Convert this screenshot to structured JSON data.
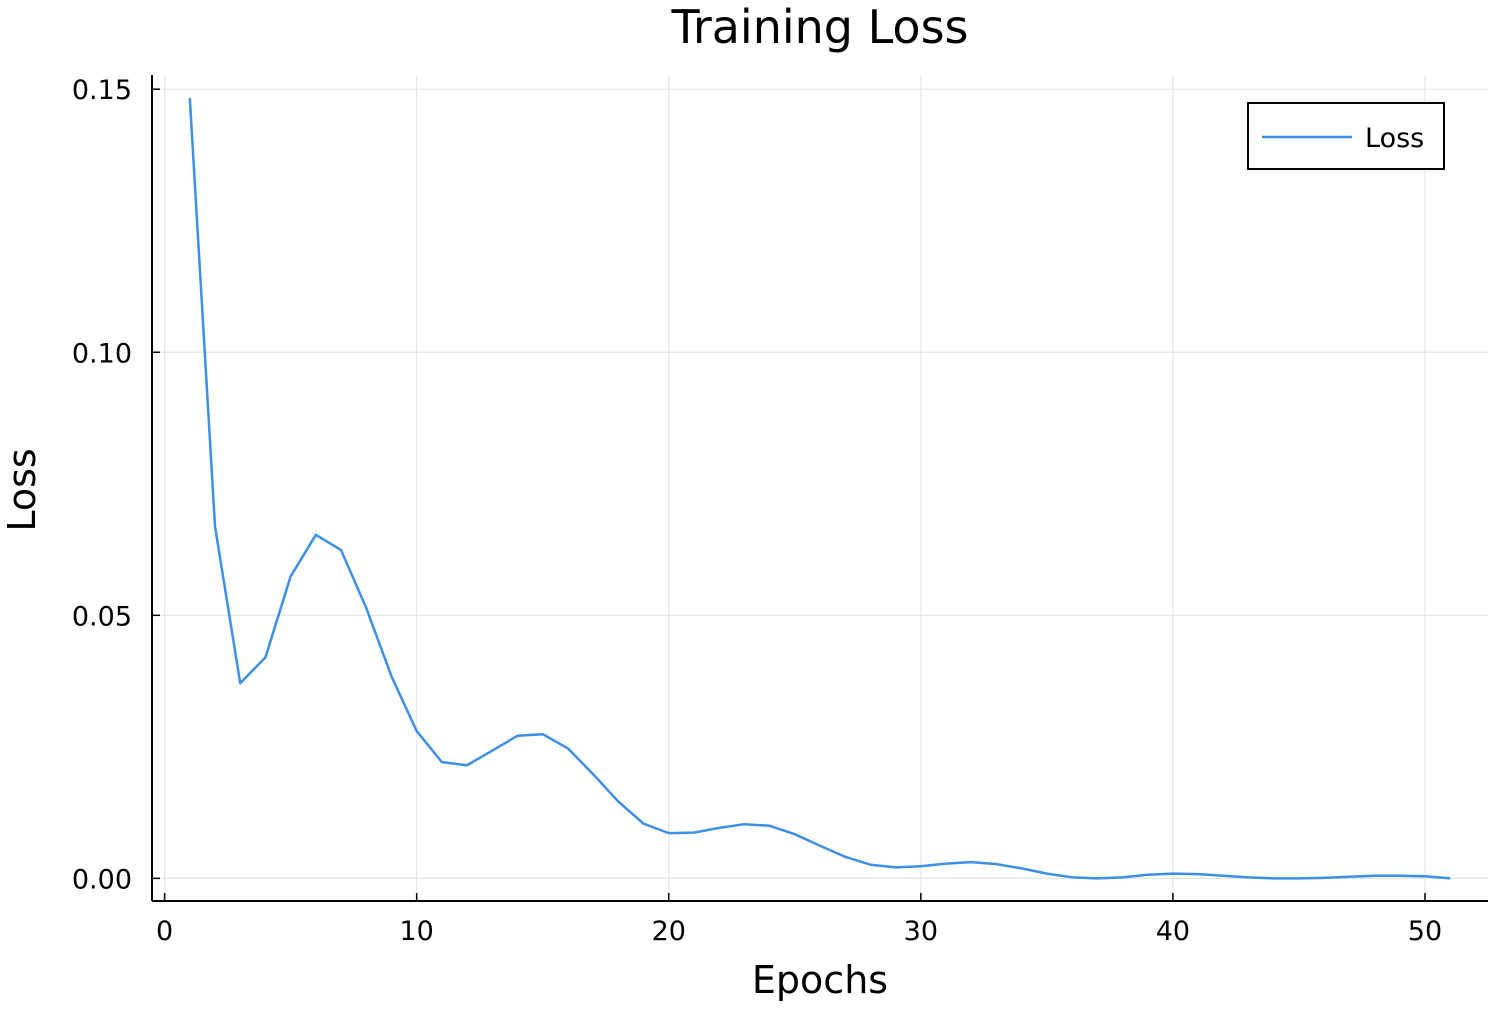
{
  "chart_data": {
    "type": "line",
    "title": "Training Loss",
    "xlabel": "Epochs",
    "ylabel": "Loss",
    "xlim": [
      -0.5,
      52.5
    ],
    "ylim": [
      -0.0043,
      0.1527
    ],
    "xticks": [
      0,
      10,
      20,
      30,
      40,
      50
    ],
    "xtick_labels": [
      "0",
      "10",
      "20",
      "30",
      "40",
      "50"
    ],
    "yticks": [
      0.0,
      0.05,
      0.1,
      0.15
    ],
    "ytick_labels": [
      "0.00",
      "0.05",
      "0.10",
      "0.15"
    ],
    "grid": true,
    "legend": {
      "position": "top-right"
    },
    "series": [
      {
        "name": "Loss",
        "color": "#3e8fe8",
        "x": [
          1,
          2,
          3,
          4,
          5,
          6,
          7,
          8,
          9,
          10,
          11,
          12,
          13,
          14,
          15,
          16,
          17,
          18,
          19,
          20,
          21,
          22,
          23,
          24,
          25,
          26,
          27,
          28,
          29,
          30,
          31,
          32,
          33,
          34,
          35,
          36,
          37,
          38,
          39,
          40,
          41,
          42,
          43,
          44,
          45,
          46,
          47,
          48,
          49,
          50,
          51
        ],
        "y": [
          0.1483,
          0.0669,
          0.0371,
          0.042,
          0.0574,
          0.0653,
          0.0624,
          0.0514,
          0.0384,
          0.028,
          0.0221,
          0.0215,
          0.0243,
          0.0271,
          0.0274,
          0.0247,
          0.0198,
          0.0146,
          0.0104,
          0.0086,
          0.0087,
          0.0096,
          0.0103,
          0.01,
          0.0084,
          0.0062,
          0.0041,
          0.0026,
          0.0021,
          0.0023,
          0.0028,
          0.0031,
          0.0027,
          0.0019,
          0.0009,
          0.0002,
          0.0,
          0.0002,
          0.0007,
          0.0009,
          0.0008,
          0.0005,
          0.0002,
          0.0,
          0.0,
          0.0001,
          0.0003,
          0.0005,
          0.0005,
          0.0004,
          0.0
        ]
      }
    ]
  }
}
